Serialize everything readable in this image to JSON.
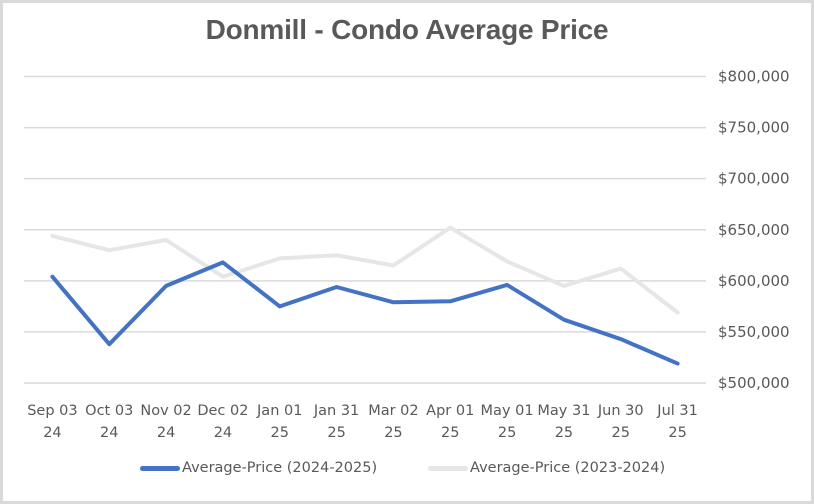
{
  "chart_data": {
    "type": "line",
    "title": "Donmill - Condo Average Price",
    "xlabel": "",
    "ylabel": "",
    "categories": [
      [
        "Sep 03",
        "24"
      ],
      [
        "Oct 03",
        "24"
      ],
      [
        "Nov 02",
        "24"
      ],
      [
        "Dec 02",
        "24"
      ],
      [
        "Jan 01",
        "25"
      ],
      [
        "Jan 31",
        "25"
      ],
      [
        "Mar 02",
        "25"
      ],
      [
        "Apr 01",
        "25"
      ],
      [
        "May 01",
        "25"
      ],
      [
        "May 31",
        "25"
      ],
      [
        "Jun 30",
        "25"
      ],
      [
        "Jul 31",
        "25"
      ]
    ],
    "ylim": [
      500000,
      800000
    ],
    "yticks": [
      500000,
      550000,
      600000,
      650000,
      700000,
      750000,
      800000
    ],
    "ytick_labels": [
      "$500,000",
      "$550,000",
      "$600,000",
      "$650,000",
      "$700,000",
      "$750,000",
      "$800,000"
    ],
    "y_axis_position": "right",
    "grid": true,
    "legend_position": "bottom",
    "series": [
      {
        "name": "Average-Price (2024-2025)",
        "color": "#4472c4",
        "values": [
          604000,
          538000,
          595000,
          618000,
          575000,
          594000,
          579000,
          580000,
          596000,
          562000,
          543000,
          519000
        ]
      },
      {
        "name": "Average-Price (2023-2024)",
        "color": "#e7e6e6",
        "values": [
          644000,
          630000,
          640000,
          604000,
          622000,
          625000,
          615000,
          652000,
          619000,
          595000,
          612000,
          569000
        ]
      }
    ]
  },
  "colors": {
    "grid": "#d9d9d9",
    "text": "#595959",
    "border": "#d9d9d9"
  }
}
